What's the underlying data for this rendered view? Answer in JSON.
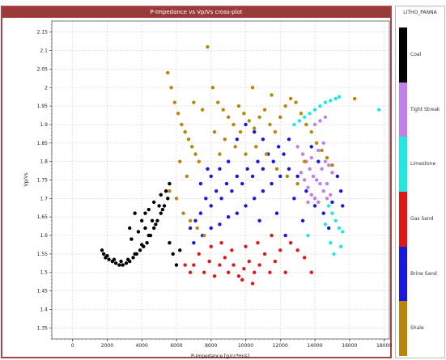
{
  "window": {
    "title": "P-Impedance vs Vp/Vs cross-plot"
  },
  "colors": {
    "frame": "#a94444",
    "title_bar": "#9a3b3b",
    "grid": "#cfcfcf"
  },
  "legend": {
    "title": "LITHO_PANNA",
    "items": [
      {
        "label": "Coal",
        "color": "#000000"
      },
      {
        "label": "Tight Streak",
        "color": "#c080e8"
      },
      {
        "label": "Limestone",
        "color": "#22e8e0"
      },
      {
        "label": "Gas Sand",
        "color": "#e01818"
      },
      {
        "label": "Brine Sand",
        "color": "#1818e0"
      },
      {
        "label": "Shale",
        "color": "#b8860b"
      }
    ]
  },
  "chart_data": {
    "type": "scatter",
    "title": "P-Impedance vs Vp/Vs cross-plot",
    "xlabel": "P-Impedance [g/cc*m/s]",
    "ylabel": "Vp/Vs",
    "xlim": [
      -1200,
      18300
    ],
    "ylim": [
      1.32,
      2.18
    ],
    "xticks": [
      0,
      2000,
      4000,
      6000,
      8000,
      10000,
      12000,
      14000,
      16000,
      18000
    ],
    "yticks": [
      1.35,
      1.4,
      1.45,
      1.5,
      1.55,
      1.6,
      1.65,
      1.7,
      1.75,
      1.8,
      1.85,
      1.9,
      1.95,
      2,
      2.05,
      2.1,
      2.15
    ],
    "grid": true,
    "legend_position": "right",
    "series": [
      {
        "name": "Coal",
        "color": "#000000",
        "points": [
          [
            1700,
            1.56
          ],
          [
            1900,
            1.54
          ],
          [
            2100,
            1.535
          ],
          [
            2300,
            1.53
          ],
          [
            2500,
            1.525
          ],
          [
            2700,
            1.52
          ],
          [
            2900,
            1.52
          ],
          [
            3100,
            1.525
          ],
          [
            3300,
            1.53
          ],
          [
            3500,
            1.54
          ],
          [
            3700,
            1.55
          ],
          [
            3900,
            1.56
          ],
          [
            4100,
            1.57
          ],
          [
            4300,
            1.58
          ],
          [
            4500,
            1.6
          ],
          [
            4700,
            1.62
          ],
          [
            4900,
            1.64
          ],
          [
            5100,
            1.66
          ],
          [
            5300,
            1.68
          ],
          [
            5500,
            1.7
          ],
          [
            1800,
            1.55
          ],
          [
            2000,
            1.545
          ],
          [
            2400,
            1.535
          ],
          [
            2800,
            1.53
          ],
          [
            3200,
            1.535
          ],
          [
            3600,
            1.55
          ],
          [
            4000,
            1.575
          ],
          [
            4400,
            1.6
          ],
          [
            4800,
            1.63
          ],
          [
            5200,
            1.67
          ],
          [
            3400,
            1.59
          ],
          [
            3800,
            1.61
          ],
          [
            4200,
            1.62
          ],
          [
            4600,
            1.64
          ],
          [
            5000,
            1.68
          ],
          [
            5400,
            1.72
          ],
          [
            5600,
            1.74
          ],
          [
            4200,
            1.66
          ],
          [
            4700,
            1.69
          ],
          [
            5100,
            1.71
          ],
          [
            3300,
            1.62
          ],
          [
            3600,
            1.66
          ],
          [
            4000,
            1.64
          ],
          [
            4400,
            1.67
          ],
          [
            5800,
            1.55
          ],
          [
            6000,
            1.52
          ],
          [
            5600,
            1.58
          ],
          [
            6200,
            1.56
          ]
        ]
      },
      {
        "name": "Tight Streak",
        "color": "#c080e8",
        "points": [
          [
            13000,
            1.84
          ],
          [
            13300,
            1.82
          ],
          [
            13500,
            1.8
          ],
          [
            13700,
            1.78
          ],
          [
            13900,
            1.76
          ],
          [
            14100,
            1.75
          ],
          [
            14300,
            1.74
          ],
          [
            14500,
            1.72
          ],
          [
            14700,
            1.7
          ],
          [
            14900,
            1.71
          ],
          [
            13200,
            1.77
          ],
          [
            13400,
            1.75
          ],
          [
            13600,
            1.73
          ],
          [
            13800,
            1.71
          ],
          [
            14000,
            1.7
          ],
          [
            14200,
            1.69
          ],
          [
            14400,
            1.78
          ],
          [
            14600,
            1.8
          ],
          [
            14800,
            1.79
          ],
          [
            15000,
            1.77
          ],
          [
            14000,
            1.9
          ],
          [
            14300,
            1.91
          ],
          [
            14600,
            1.92
          ],
          [
            13800,
            1.81
          ],
          [
            14200,
            1.83
          ],
          [
            14500,
            1.85
          ],
          [
            14700,
            1.74
          ],
          [
            13600,
            1.69
          ]
        ]
      },
      {
        "name": "Limestone",
        "color": "#22e8e0",
        "points": [
          [
            12800,
            1.9
          ],
          [
            13100,
            1.91
          ],
          [
            13400,
            1.92
          ],
          [
            13700,
            1.93
          ],
          [
            14000,
            1.94
          ],
          [
            14300,
            1.95
          ],
          [
            14600,
            1.96
          ],
          [
            14900,
            1.965
          ],
          [
            15200,
            1.97
          ],
          [
            15400,
            1.975
          ],
          [
            17700,
            1.94
          ],
          [
            14800,
            1.68
          ],
          [
            15000,
            1.66
          ],
          [
            15200,
            1.64
          ],
          [
            15400,
            1.62
          ],
          [
            15600,
            1.61
          ],
          [
            14600,
            1.63
          ],
          [
            15500,
            1.57
          ],
          [
            14900,
            1.58
          ],
          [
            13600,
            1.6
          ],
          [
            15100,
            1.55
          ]
        ]
      },
      {
        "name": "Gas Sand",
        "color": "#e01818",
        "points": [
          [
            6500,
            1.52
          ],
          [
            6800,
            1.5
          ],
          [
            7000,
            1.52
          ],
          [
            7300,
            1.55
          ],
          [
            7600,
            1.5
          ],
          [
            7900,
            1.53
          ],
          [
            8200,
            1.49
          ],
          [
            8500,
            1.52
          ],
          [
            8800,
            1.54
          ],
          [
            9000,
            1.5
          ],
          [
            9300,
            1.52
          ],
          [
            9600,
            1.49
          ],
          [
            9900,
            1.51
          ],
          [
            10200,
            1.53
          ],
          [
            10500,
            1.5
          ],
          [
            10800,
            1.52
          ],
          [
            11100,
            1.55
          ],
          [
            11400,
            1.5
          ],
          [
            11700,
            1.53
          ],
          [
            12000,
            1.56
          ],
          [
            12300,
            1.5
          ],
          [
            12600,
            1.58
          ],
          [
            13000,
            1.56
          ],
          [
            13400,
            1.54
          ],
          [
            13800,
            1.5
          ],
          [
            8000,
            1.57
          ],
          [
            8600,
            1.58
          ],
          [
            9200,
            1.56
          ],
          [
            10000,
            1.57
          ],
          [
            10700,
            1.58
          ],
          [
            11500,
            1.6
          ],
          [
            9800,
            1.48
          ],
          [
            10400,
            1.47
          ]
        ]
      },
      {
        "name": "Brine Sand",
        "color": "#1818e0",
        "points": [
          [
            6800,
            1.62
          ],
          [
            7100,
            1.64
          ],
          [
            7400,
            1.66
          ],
          [
            7700,
            1.7
          ],
          [
            8000,
            1.68
          ],
          [
            8300,
            1.72
          ],
          [
            8600,
            1.7
          ],
          [
            8900,
            1.74
          ],
          [
            9200,
            1.72
          ],
          [
            9500,
            1.76
          ],
          [
            9800,
            1.74
          ],
          [
            10100,
            1.78
          ],
          [
            10400,
            1.76
          ],
          [
            10700,
            1.8
          ],
          [
            11000,
            1.78
          ],
          [
            11300,
            1.82
          ],
          [
            11600,
            1.8
          ],
          [
            11900,
            1.84
          ],
          [
            12200,
            1.82
          ],
          [
            12500,
            1.86
          ],
          [
            7000,
            1.58
          ],
          [
            7500,
            1.6
          ],
          [
            8000,
            1.62
          ],
          [
            8500,
            1.63
          ],
          [
            9000,
            1.65
          ],
          [
            9500,
            1.66
          ],
          [
            10000,
            1.68
          ],
          [
            10500,
            1.7
          ],
          [
            11000,
            1.72
          ],
          [
            11500,
            1.74
          ],
          [
            12000,
            1.76
          ],
          [
            12500,
            1.78
          ],
          [
            13000,
            1.76
          ],
          [
            13500,
            1.72
          ],
          [
            14000,
            1.68
          ],
          [
            14500,
            1.66
          ],
          [
            15000,
            1.69
          ],
          [
            15500,
            1.72
          ],
          [
            15300,
            1.76
          ],
          [
            14800,
            1.62
          ],
          [
            9500,
            1.86
          ],
          [
            10000,
            1.9
          ],
          [
            10500,
            1.88
          ],
          [
            11000,
            1.86
          ],
          [
            9000,
            1.8
          ],
          [
            8500,
            1.78
          ],
          [
            8000,
            1.76
          ],
          [
            10800,
            1.64
          ],
          [
            11800,
            1.66
          ],
          [
            12800,
            1.7
          ],
          [
            13300,
            1.64
          ],
          [
            12300,
            1.6
          ],
          [
            7400,
            1.74
          ],
          [
            7800,
            1.78
          ],
          [
            15600,
            1.68
          ],
          [
            14200,
            1.8
          ],
          [
            13800,
            1.84
          ]
        ]
      },
      {
        "name": "Shale",
        "color": "#b8860b",
        "points": [
          [
            5500,
            2.04
          ],
          [
            5700,
            2.0
          ],
          [
            5900,
            1.96
          ],
          [
            6100,
            1.93
          ],
          [
            6300,
            1.9
          ],
          [
            6500,
            1.88
          ],
          [
            6700,
            1.86
          ],
          [
            6900,
            1.84
          ],
          [
            7100,
            1.82
          ],
          [
            7300,
            1.8
          ],
          [
            7800,
            2.11
          ],
          [
            8100,
            2.0
          ],
          [
            8400,
            1.96
          ],
          [
            8700,
            1.94
          ],
          [
            9000,
            1.92
          ],
          [
            9300,
            1.9
          ],
          [
            9600,
            1.95
          ],
          [
            9900,
            1.93
          ],
          [
            10200,
            1.91
          ],
          [
            10500,
            1.89
          ],
          [
            10800,
            1.92
          ],
          [
            11100,
            1.94
          ],
          [
            11400,
            1.9
          ],
          [
            11700,
            1.88
          ],
          [
            12000,
            1.92
          ],
          [
            12300,
            1.95
          ],
          [
            12600,
            1.97
          ],
          [
            12900,
            1.96
          ],
          [
            13200,
            1.93
          ],
          [
            13500,
            1.9
          ],
          [
            13800,
            1.88
          ],
          [
            14100,
            1.85
          ],
          [
            14400,
            1.83
          ],
          [
            14700,
            1.81
          ],
          [
            15000,
            1.79
          ],
          [
            16300,
            1.97
          ],
          [
            6000,
            1.7
          ],
          [
            6400,
            1.66
          ],
          [
            6800,
            1.64
          ],
          [
            7200,
            1.62
          ],
          [
            7600,
            1.6
          ],
          [
            6200,
            1.8
          ],
          [
            7000,
            1.96
          ],
          [
            7500,
            1.94
          ],
          [
            8200,
            1.88
          ],
          [
            8800,
            1.86
          ],
          [
            9400,
            1.84
          ],
          [
            10000,
            1.82
          ],
          [
            10600,
            1.84
          ],
          [
            11200,
            1.82
          ],
          [
            11800,
            1.78
          ],
          [
            12400,
            1.76
          ],
          [
            13000,
            1.74
          ],
          [
            13400,
            1.8
          ],
          [
            5600,
            1.72
          ],
          [
            6600,
            1.76
          ],
          [
            8500,
            1.82
          ],
          [
            9700,
            1.88
          ],
          [
            11500,
            1.98
          ],
          [
            10400,
            2.0
          ]
        ]
      }
    ]
  }
}
